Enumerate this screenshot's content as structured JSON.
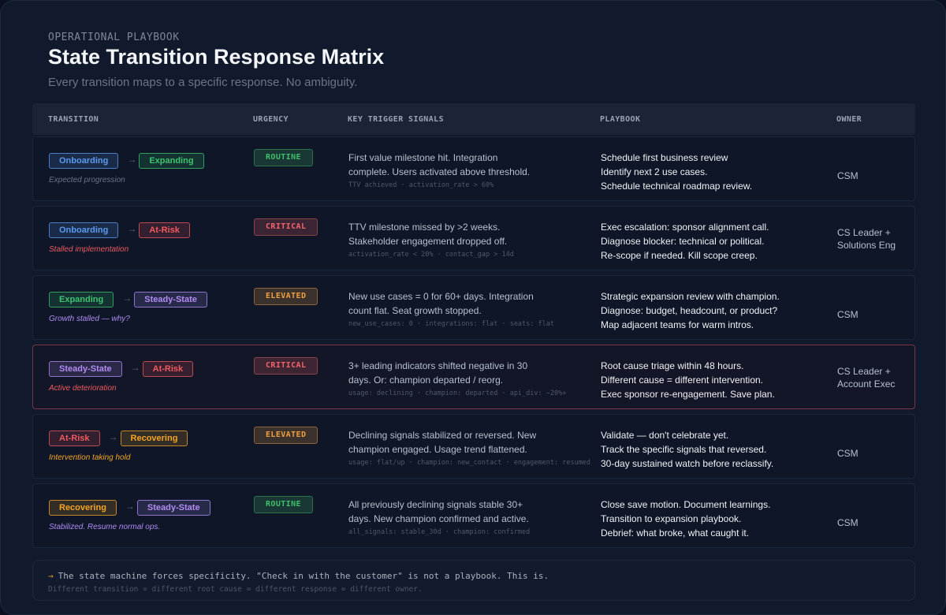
{
  "header": {
    "eyebrow": "OPERATIONAL PLAYBOOK",
    "title": "State Transition Response Matrix",
    "subtitle": "Every transition maps to a specific response. No ambiguity."
  },
  "colors": {
    "onboarding": "#5b9bf0",
    "expanding": "#3ec46d",
    "at_risk": "#f0595f",
    "steady_state": "#b18cf5",
    "recovering": "#f5a524",
    "routine": "#3fbf6a",
    "critical": "#f0646a",
    "elevated": "#f0a040",
    "highlight_border": "#7a3448"
  },
  "table": {
    "columns": {
      "transition": "TRANSITION",
      "urgency": "URGENCY",
      "signals": "KEY TRIGGER SIGNALS",
      "playbook": "PLAYBOOK",
      "owner": "OWNER"
    },
    "rows": [
      {
        "from": "Onboarding",
        "to": "Expanding",
        "arrow": "→",
        "note": "Expected progression",
        "urgency": "ROUTINE",
        "signals": "First value milestone hit. Integration complete. Users activated above threshold.",
        "code": "TTV achieved · activation_rate > 60%",
        "playbook": [
          "Schedule first business review",
          "Identify next 2 use cases.",
          "Schedule technical roadmap review."
        ],
        "owner": [
          "CSM"
        ]
      },
      {
        "from": "Onboarding",
        "to": "At-Risk",
        "arrow": "→",
        "note": "Stalled implementation",
        "urgency": "CRITICAL",
        "signals": "TTV milestone missed by >2 weeks. Stakeholder engagement dropped off.",
        "code": "activation_rate < 20% · contact_gap > 14d",
        "playbook": [
          "Exec escalation: sponsor alignment call.",
          "Diagnose blocker: technical or political.",
          "Re-scope if needed. Kill scope creep."
        ],
        "owner": [
          "CS Leader +",
          "Solutions Eng"
        ]
      },
      {
        "from": "Expanding",
        "to": "Steady-State",
        "arrow": "→",
        "note": "Growth stalled — why?",
        "urgency": "ELEVATED",
        "signals": "New use cases = 0 for 60+ days. Integration count flat. Seat growth stopped.",
        "code": "new_use_cases: 0 · integrations: flat · seats: flat",
        "playbook": [
          "Strategic expansion review with champion.",
          "Diagnose: budget, headcount, or product?",
          "Map adjacent teams for warm intros."
        ],
        "owner": [
          "CSM"
        ]
      },
      {
        "from": "Steady-State",
        "to": "At-Risk",
        "arrow": "→",
        "note": "Active deterioration",
        "urgency": "CRITICAL",
        "signals": "3+ leading indicators shifted negative in 30 days. Or: champion departed / reorg.",
        "code": "usage: declining · champion: departed · api_div: −20%+",
        "playbook": [
          "Root cause triage within 48 hours.",
          "Different cause = different intervention.",
          "Exec sponsor re-engagement. Save plan."
        ],
        "owner": [
          "CS Leader +",
          "Account Exec"
        ]
      },
      {
        "from": "At-Risk",
        "to": "Recovering",
        "arrow": "→",
        "note": "Intervention taking hold",
        "urgency": "ELEVATED",
        "signals": "Declining signals stabilized or reversed. New champion engaged. Usage trend flattened.",
        "code": "usage: flat/up · champion: new_contact · engagement: resumed",
        "playbook": [
          "Validate — don't celebrate yet.",
          "Track the specific signals that reversed.",
          "30-day sustained watch before reclassify."
        ],
        "owner": [
          "CSM"
        ]
      },
      {
        "from": "Recovering",
        "to": "Steady-State",
        "arrow": "→",
        "note": "Stabilized. Resume normal ops.",
        "urgency": "ROUTINE",
        "signals": "All previously declining signals stable 30+ days. New champion confirmed and active.",
        "code": "all_signals: stable_30d · champion: confirmed",
        "playbook": [
          "Close save motion. Document learnings.",
          "Transition to expansion playbook.",
          "Debrief: what broke, what caught it."
        ],
        "owner": [
          "CSM"
        ]
      }
    ]
  },
  "footer": {
    "arrow": "→",
    "line1": "The state machine forces specificity. \"Check in with the customer\" is not a playbook. This is.",
    "line2": "Different transition = different root cause = different response = different owner."
  }
}
